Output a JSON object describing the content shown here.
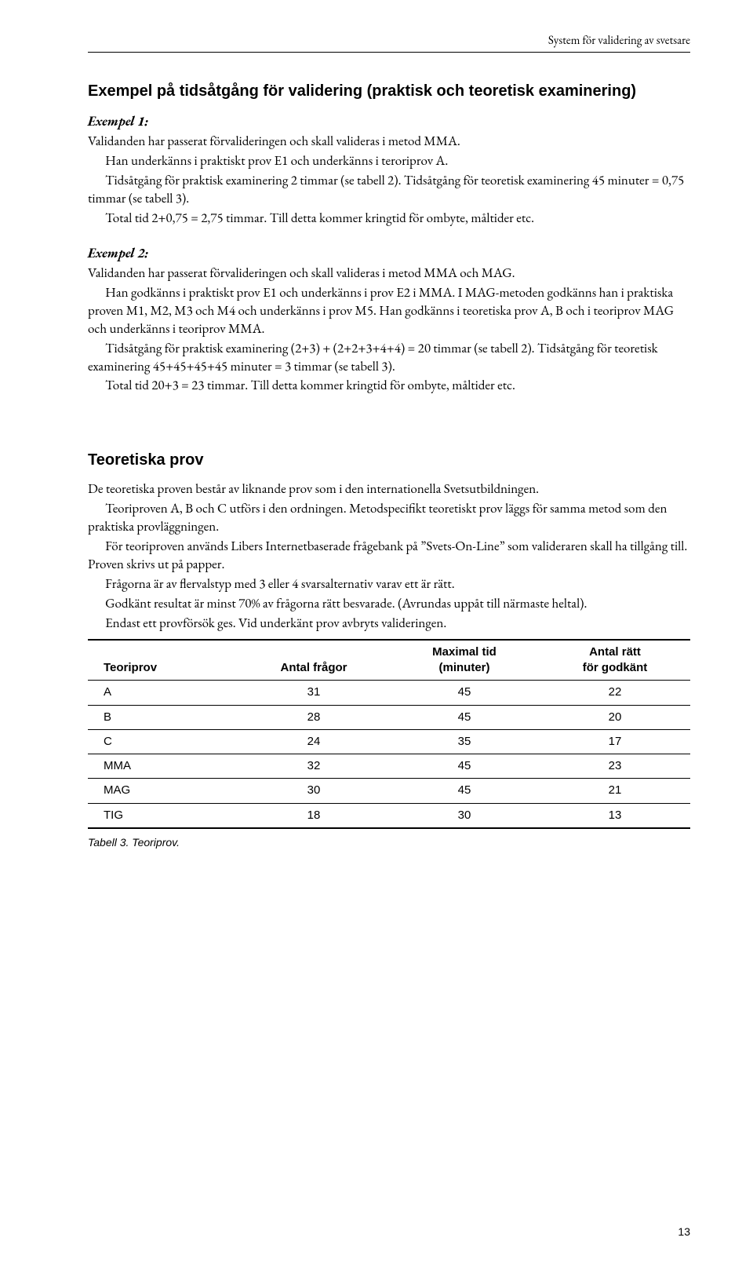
{
  "running_head": "System för validering av svetsare",
  "section1_title": "Exempel på tidsåtgång för validering (praktisk och teoretisk examinering)",
  "ex1_label": "Exempel 1:",
  "ex1_p1": "Validanden har passerat förvalideringen och skall valideras i metod MMA.",
  "ex1_p2": "Han underkänns i praktiskt prov E1 och underkänns i teroriprov A.",
  "ex1_p3": "Tidsåtgång för praktisk examinering 2 timmar (se tabell 2). Tidsåtgång för teoretisk examinering 45 minuter = 0,75 timmar (se tabell 3).",
  "ex1_p4": "Total tid 2+0,75 = 2,75 timmar. Till detta kommer kringtid för ombyte, måltider etc.",
  "ex2_label": "Exempel 2:",
  "ex2_p1": "Validanden har passerat förvalideringen och skall valideras i metod MMA och MAG.",
  "ex2_p2": "Han godkänns i praktiskt prov E1 och underkänns i prov E2 i MMA. I MAG-metoden godkänns han i praktiska proven M1, M2, M3 och M4 och underkänns i prov M5. Han godkänns i teoretiska prov A, B och i teoriprov MAG och underkänns i teoriprov MMA.",
  "ex2_p3": "Tidsåtgång för praktisk examinering (2+3) + (2+2+3+4+4) = 20 timmar (se tabell 2). Tidsåtgång för teoretisk examinering 45+45+45+45 minuter = 3 timmar (se tabell 3).",
  "ex2_p4": "Total tid 20+3 = 23 timmar. Till detta kommer kringtid för ombyte, måltider etc.",
  "section2_title": "Teoretiska prov",
  "s2_p1": "De teoretiska proven består av liknande prov som i den internationella Svetsutbildningen.",
  "s2_p2": "Teoriproven A, B och C utförs i den ordningen. Metodspecifikt teoretiskt prov läggs för samma metod som den praktiska provläggningen.",
  "s2_p3": "För teoriproven används Libers Internetbaserade frågebank på ”Svets-On-Line” som valideraren skall ha tillgång till. Proven skrivs ut på papper.",
  "s2_p4": "Frågorna är av flervalstyp med 3 eller 4 svarsalternativ varav ett är rätt.",
  "s2_p5": "Godkänt resultat är minst 70% av frågorna rätt besvarade. (Avrundas uppåt till närmaste heltal).",
  "s2_p6": "Endast ett provförsök ges. Vid underkänt prov avbryts valideringen.",
  "table": {
    "columns": [
      "Teoriprov",
      "Antal frågor",
      "Maximal tid\n(minuter)",
      "Antal rätt\nför godkänt"
    ],
    "col_widths": [
      "25%",
      "25%",
      "25%",
      "25%"
    ],
    "rows": [
      [
        "A",
        "31",
        "45",
        "22"
      ],
      [
        "B",
        "28",
        "45",
        "20"
      ],
      [
        "C",
        "24",
        "35",
        "17"
      ],
      [
        "MMA",
        "32",
        "45",
        "23"
      ],
      [
        "MAG",
        "30",
        "45",
        "21"
      ],
      [
        "TIG",
        "18",
        "30",
        "13"
      ]
    ]
  },
  "caption": "Tabell 3. Teoriprov.",
  "page_number": "13"
}
